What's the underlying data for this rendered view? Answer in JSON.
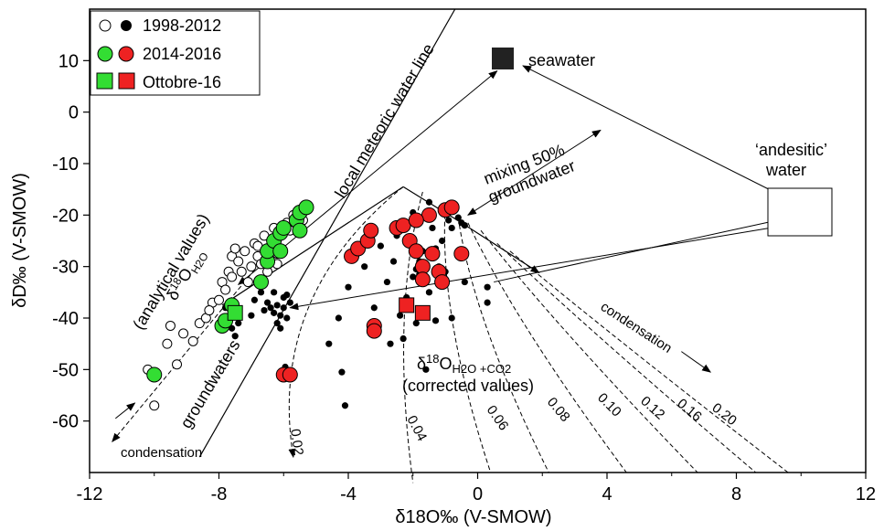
{
  "chart_data": {
    "type": "scatter",
    "xlabel": "δ18O‰ (V-SMOW)",
    "ylabel": "δD‰ (V-SMOW)",
    "xlim": [
      -12,
      12
    ],
    "ylim": [
      -70,
      20
    ],
    "xticks": [
      "-12",
      "-8",
      "-4",
      "0",
      "4",
      "8",
      "12"
    ],
    "yticks": [
      "10",
      "0",
      "-10",
      "-20",
      "-30",
      "-40",
      "-50",
      "-60"
    ],
    "legend": {
      "placement": "top-left",
      "entries": [
        "1998-2012",
        "2014-2016",
        "Ottobre-16"
      ]
    },
    "annotations": {
      "lmwl": "local meteoric water line",
      "groundwaters": "groundwaters",
      "seawater": "seawater",
      "andesitic_1": "‘andesitic’",
      "andesitic_2": "water",
      "mixing_1": "mixing 50%",
      "mixing_2": "groundwater",
      "condensation_left": "condensation",
      "condensation_right": "condensation",
      "analytical_1": "δ18OH2O",
      "analytical_2": "(analytical values)",
      "corrected_1": "δ18OH2O +CO2",
      "corrected_2": "(corrected values)",
      "curve_labels": [
        "0.02",
        "0.04",
        "0.06",
        "0.08",
        "0.10",
        "0.12",
        "0.16",
        "0.20"
      ]
    },
    "series": [
      {
        "name": "1998-2012",
        "group": "analytical",
        "marker": "open-circle",
        "color": "#ffffff",
        "points": [
          [
            -10,
            -57
          ],
          [
            -10.2,
            -50
          ],
          [
            -9.6,
            -45
          ],
          [
            -9.5,
            -41.5
          ],
          [
            -9.3,
            -49
          ],
          [
            -9.1,
            -43
          ],
          [
            -8.8,
            -44.5
          ],
          [
            -8.6,
            -41
          ],
          [
            -8.4,
            -40
          ],
          [
            -8.2,
            -37
          ],
          [
            -8.3,
            -38.5
          ],
          [
            -8.0,
            -36.5
          ],
          [
            -7.9,
            -33
          ],
          [
            -7.7,
            -31
          ],
          [
            -7.6,
            -28
          ],
          [
            -7.5,
            -26.5
          ],
          [
            -7.4,
            -29
          ],
          [
            -7.3,
            -31
          ],
          [
            -7.2,
            -27
          ],
          [
            -7.1,
            -33
          ],
          [
            -7.0,
            -30
          ],
          [
            -6.9,
            -25.5
          ],
          [
            -6.8,
            -28
          ],
          [
            -6.7,
            -29.5
          ],
          [
            -6.6,
            -24
          ],
          [
            -6.5,
            -31
          ],
          [
            -6.4,
            -26
          ],
          [
            -6.3,
            -22.5
          ],
          [
            -6.2,
            -27.5
          ],
          [
            -6.1,
            -24
          ],
          [
            -6.0,
            -22.5
          ],
          [
            -5.9,
            -21.5
          ],
          [
            -5.8,
            -23
          ],
          [
            -5.7,
            -20
          ],
          [
            -5.5,
            -19.5
          ],
          [
            -5.4,
            -21
          ],
          [
            -7.8,
            -34.5
          ],
          [
            -7.6,
            -32
          ],
          [
            -6.8,
            -26
          ],
          [
            -6.2,
            -29.5
          ]
        ]
      },
      {
        "name": "1998-2012",
        "group": "corrected",
        "marker": "filled-circle",
        "color": "#000000",
        "points": [
          [
            -6.5,
            -37
          ],
          [
            -6.3,
            -39
          ],
          [
            -6.2,
            -37.5
          ],
          [
            -6.1,
            -39.5
          ],
          [
            -6.0,
            -38
          ],
          [
            -5.9,
            -40
          ],
          [
            -6.0,
            -36
          ],
          [
            -6.4,
            -38
          ],
          [
            -6.6,
            -38.5
          ],
          [
            -6.2,
            -41
          ],
          [
            -5.8,
            -37
          ],
          [
            -7.0,
            -39.5
          ],
          [
            -7.4,
            -41
          ],
          [
            -7.6,
            -42
          ],
          [
            -7.8,
            -38
          ],
          [
            -7.5,
            -43.5
          ],
          [
            -6.9,
            -36.5
          ],
          [
            -6.7,
            -35
          ],
          [
            -5.9,
            -35.5
          ],
          [
            -6.3,
            -35
          ],
          [
            -6.1,
            -42
          ],
          [
            -5.95,
            -49.5
          ],
          [
            -4.6,
            -45
          ],
          [
            -4.2,
            -50.5
          ],
          [
            -4.1,
            -57
          ],
          [
            -4.3,
            -40
          ],
          [
            -4.0,
            -34
          ],
          [
            -3.8,
            -28
          ],
          [
            -3.5,
            -30
          ],
          [
            -3.2,
            -38
          ],
          [
            -3.0,
            -26
          ],
          [
            -2.8,
            -33
          ],
          [
            -2.6,
            -29
          ],
          [
            -2.5,
            -24
          ],
          [
            -2.4,
            -39.5
          ],
          [
            -2.3,
            -44
          ],
          [
            -2.2,
            -36
          ],
          [
            -2.0,
            -32
          ],
          [
            -1.9,
            -30.5
          ],
          [
            -1.8,
            -29
          ],
          [
            -1.8,
            -31.5
          ],
          [
            -1.7,
            -27
          ],
          [
            -1.6,
            -33
          ],
          [
            -1.5,
            -35
          ],
          [
            -1.4,
            -22.5
          ],
          [
            -1.3,
            -26.5
          ],
          [
            -1.2,
            -30
          ],
          [
            -1.0,
            -31
          ],
          [
            -0.9,
            -21
          ],
          [
            -0.8,
            -22.5
          ],
          [
            -0.6,
            -20.5
          ],
          [
            -0.5,
            -21.5
          ],
          [
            -0.4,
            -22
          ],
          [
            -1.1,
            -25
          ],
          [
            -2.0,
            -19.5
          ],
          [
            -1.5,
            -17.5
          ],
          [
            -2.7,
            -45
          ],
          [
            -1.9,
            -41
          ],
          [
            -1.6,
            -50
          ],
          [
            -1.3,
            -40.5
          ],
          [
            -0.8,
            -40
          ],
          [
            0.3,
            -37
          ],
          [
            0.3,
            -34
          ],
          [
            -0.4,
            -33
          ]
        ]
      },
      {
        "name": "2014-2016",
        "group": "analytical",
        "marker": "filled-circle",
        "color": "#33dd33",
        "points": [
          [
            -10,
            -51
          ],
          [
            -7.9,
            -41.5
          ],
          [
            -7.8,
            -40.5
          ],
          [
            -7.6,
            -37.5
          ],
          [
            -6.7,
            -33
          ],
          [
            -6.5,
            -29
          ],
          [
            -6.5,
            -27
          ],
          [
            -6.3,
            -25
          ],
          [
            -6.1,
            -27
          ],
          [
            -6.1,
            -23.5
          ],
          [
            -6.0,
            -22.5
          ],
          [
            -5.6,
            -21
          ],
          [
            -5.5,
            -19.5
          ],
          [
            -5.3,
            -18.5
          ],
          [
            -5.5,
            -23
          ]
        ]
      },
      {
        "name": "2014-2016",
        "group": "corrected",
        "marker": "filled-circle",
        "color": "#ee2222",
        "points": [
          [
            -6.0,
            -51
          ],
          [
            -5.8,
            -51
          ],
          [
            -3.9,
            -28
          ],
          [
            -3.7,
            -26.5
          ],
          [
            -3.4,
            -25
          ],
          [
            -3.3,
            -23
          ],
          [
            -3.2,
            -41.5
          ],
          [
            -3.2,
            -42.5
          ],
          [
            -2.5,
            -22.5
          ],
          [
            -2.3,
            -22
          ],
          [
            -2.1,
            -25
          ],
          [
            -1.9,
            -27
          ],
          [
            -1.7,
            -30
          ],
          [
            -1.7,
            -32.5
          ],
          [
            -1.5,
            -20
          ],
          [
            -1.4,
            -27.5
          ],
          [
            -1.2,
            -31
          ],
          [
            -1.1,
            -33
          ],
          [
            -1.0,
            -19
          ],
          [
            -0.8,
            -18.5
          ],
          [
            -0.5,
            -27.5
          ],
          [
            -1.9,
            -21
          ]
        ]
      },
      {
        "name": "Ottobre-16",
        "group": "analytical",
        "marker": "filled-square",
        "color": "#33dd33",
        "points": [
          [
            -7.5,
            -39
          ]
        ]
      },
      {
        "name": "Ottobre-16",
        "group": "corrected",
        "marker": "filled-square",
        "color": "#ee2222",
        "points": [
          [
            -2.2,
            -37.5
          ],
          [
            -1.7,
            -39
          ]
        ]
      }
    ],
    "end_members": {
      "seawater": [
        0.8,
        10
      ],
      "andesitic_water": [
        10,
        -20
      ]
    }
  }
}
